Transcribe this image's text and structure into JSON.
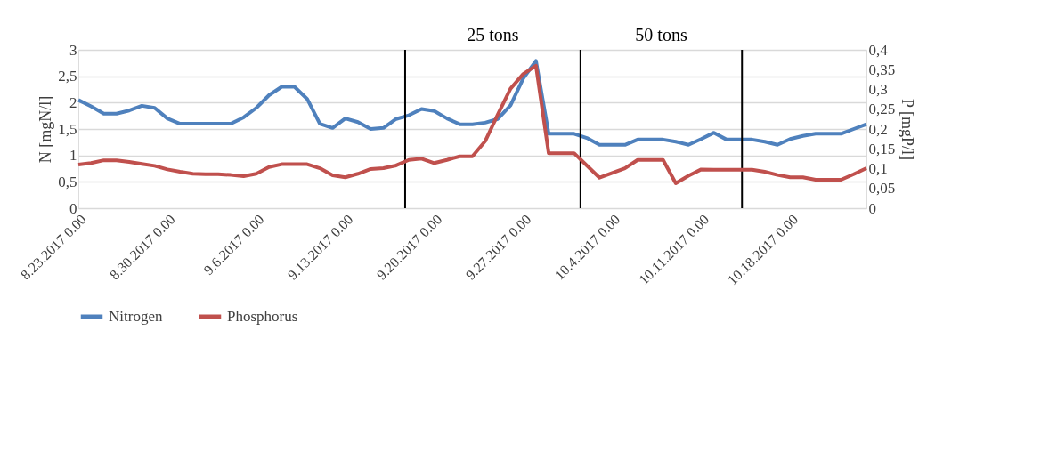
{
  "chart_data": {
    "type": "line",
    "ylabel": "N [mgN/l]",
    "y2label": "P [mgP/l]",
    "x": [
      "2017-08-23",
      "2017-08-24",
      "2017-08-25",
      "2017-08-26",
      "2017-08-27",
      "2017-08-28",
      "2017-08-29",
      "2017-08-30",
      "2017-08-31",
      "2017-09-01",
      "2017-09-02",
      "2017-09-03",
      "2017-09-04",
      "2017-09-05",
      "2017-09-06",
      "2017-09-07",
      "2017-09-08",
      "2017-09-09",
      "2017-09-10",
      "2017-09-11",
      "2017-09-12",
      "2017-09-13",
      "2017-09-14",
      "2017-09-15",
      "2017-09-16",
      "2017-09-17",
      "2017-09-18",
      "2017-09-19",
      "2017-09-20",
      "2017-09-21",
      "2017-09-22",
      "2017-09-23",
      "2017-09-24",
      "2017-09-25",
      "2017-09-26",
      "2017-09-27",
      "2017-09-28",
      "2017-09-29",
      "2017-09-30",
      "2017-10-01",
      "2017-10-02",
      "2017-10-03",
      "2017-10-04",
      "2017-10-05",
      "2017-10-06",
      "2017-10-07",
      "2017-10-08",
      "2017-10-09",
      "2017-10-10",
      "2017-10-11",
      "2017-10-12",
      "2017-10-13",
      "2017-10-14",
      "2017-10-15",
      "2017-10-16",
      "2017-10-17",
      "2017-10-18",
      "2017-10-19",
      "2017-10-20",
      "2017-10-21",
      "2017-10-22",
      "2017-10-23",
      "2017-10-24"
    ],
    "series": [
      {
        "name": "Nitrogen",
        "color": "#4f81bd",
        "values": [
          2.05,
          1.93,
          1.79,
          1.79,
          1.85,
          1.94,
          1.9,
          1.7,
          1.6,
          1.6,
          1.6,
          1.6,
          1.6,
          1.72,
          1.9,
          2.14,
          2.3,
          2.3,
          2.07,
          1.6,
          1.52,
          1.7,
          1.63,
          1.5,
          1.52,
          1.69,
          1.76,
          1.88,
          1.84,
          1.7,
          1.59,
          1.59,
          1.62,
          1.69,
          1.95,
          2.46,
          2.79,
          1.41,
          1.41,
          1.41,
          1.33,
          1.2,
          1.2,
          1.2,
          1.3,
          1.3,
          1.3,
          1.26,
          1.2,
          1.31,
          1.43,
          1.3,
          1.3,
          1.3,
          1.26,
          1.2,
          1.31,
          1.37,
          1.41,
          1.41,
          1.41,
          1.5,
          1.59
        ]
      },
      {
        "name": "Phosphorus",
        "color": "#c0504d",
        "axis": "y2",
        "values": [
          0.11,
          0.114,
          0.121,
          0.121,
          0.117,
          0.112,
          0.107,
          0.098,
          0.092,
          0.087,
          0.086,
          0.086,
          0.084,
          0.081,
          0.087,
          0.104,
          0.111,
          0.111,
          0.111,
          0.101,
          0.083,
          0.078,
          0.087,
          0.099,
          0.101,
          0.108,
          0.122,
          0.125,
          0.114,
          0.122,
          0.131,
          0.131,
          0.169,
          0.237,
          0.302,
          0.339,
          0.36,
          0.139,
          0.139,
          0.139,
          0.108,
          0.077,
          0.089,
          0.101,
          0.122,
          0.122,
          0.122,
          0.063,
          0.082,
          0.098,
          0.097,
          0.097,
          0.097,
          0.097,
          0.092,
          0.084,
          0.078,
          0.078,
          0.072,
          0.072,
          0.072,
          0.086,
          0.101
        ]
      }
    ],
    "xlim": [
      "2017-08-23",
      "2017-10-24"
    ],
    "xticks": [
      {
        "value": "2017-08-23",
        "label": "8.23.2017 0.00"
      },
      {
        "value": "2017-08-30",
        "label": "8.30.2017 0.00"
      },
      {
        "value": "2017-09-06",
        "label": "9.6.2017 0.00"
      },
      {
        "value": "2017-09-13",
        "label": "9.13.2017 0.00"
      },
      {
        "value": "2017-09-20",
        "label": "9.20.2017 0.00"
      },
      {
        "value": "2017-09-27",
        "label": "9.27.2017 0.00"
      },
      {
        "value": "2017-10-04",
        "label": "10.4.2017 0.00"
      },
      {
        "value": "2017-10-11",
        "label": "10.11.2017 0.00"
      },
      {
        "value": "2017-10-18",
        "label": "10.18.2017 0.00"
      }
    ],
    "ylim": [
      0,
      3
    ],
    "yticks": [
      0,
      {
        "value": 0.5,
        "label": "0,5"
      },
      1,
      {
        "value": 1.5,
        "label": "1,5"
      },
      2,
      {
        "value": 2.5,
        "label": "2,5"
      },
      3
    ],
    "y2lim": [
      0,
      0.4
    ],
    "y2ticks": [
      0,
      {
        "value": 0.05,
        "label": "0,05"
      },
      {
        "value": 0.1,
        "label": "0,1"
      },
      {
        "value": 0.15,
        "label": "0,15"
      },
      {
        "value": 0.2,
        "label": "0,2"
      },
      {
        "value": 0.25,
        "label": "0,25"
      },
      {
        "value": 0.3,
        "label": "0,3"
      },
      {
        "value": 0.35,
        "label": "0,35"
      },
      {
        "value": 0.4,
        "label": "0,4"
      }
    ],
    "ref_lines": [
      {
        "axis": "x",
        "value": "2017-09-17T17:00",
        "color": "#000000"
      },
      {
        "axis": "x",
        "value": "2017-10-01T12:00",
        "color": "#000000"
      },
      {
        "axis": "x",
        "value": "2017-10-14T05:00",
        "color": "#000000"
      }
    ],
    "annotations": [
      "25 tons",
      "50 tons"
    ],
    "grid": "y",
    "legend": "bottom",
    "line_style": "solid",
    "marker": "none"
  }
}
